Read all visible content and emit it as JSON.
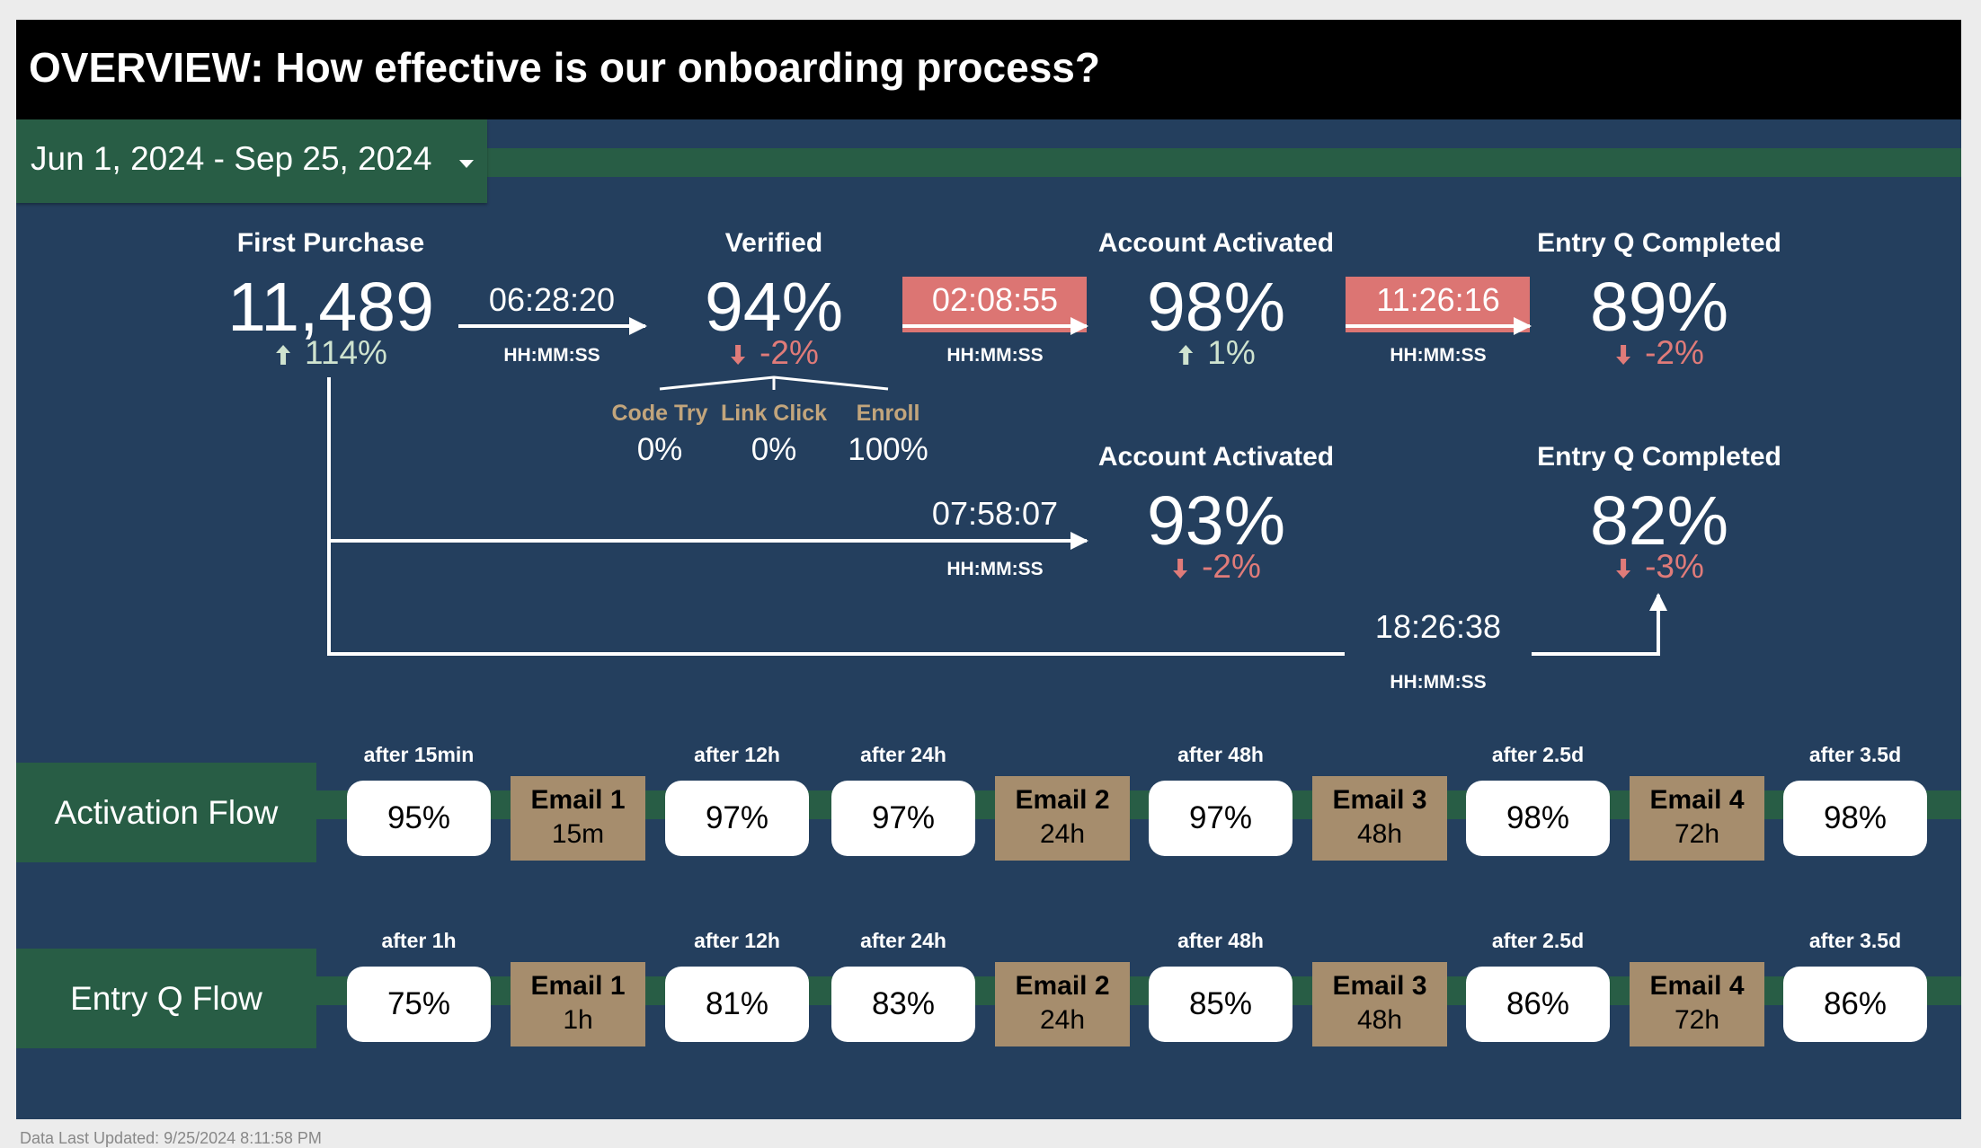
{
  "title": "OVERVIEW:  How effective is our onboarding process?",
  "date_range": "Jun 1, 2024 - Sep 25, 2024",
  "colors": {
    "header": "#000000",
    "panel": "#243f5e",
    "band": "#285d45",
    "highlight": "#dc7573",
    "email": "#a68d6d",
    "up": "#cfe3cf",
    "down": "#e07b79"
  },
  "funnel": {
    "first_purchase": {
      "label": "First Purchase",
      "value": "11,489",
      "delta": "114%",
      "delta_dir": "up"
    },
    "verified": {
      "label": "Verified",
      "value": "94%",
      "delta": "-2%",
      "delta_dir": "down"
    },
    "activated": {
      "label": "Account Activated",
      "value": "98%",
      "delta": "1%",
      "delta_dir": "up"
    },
    "entryq": {
      "label": "Entry Q Completed",
      "value": "89%",
      "delta": "-2%",
      "delta_dir": "down"
    },
    "activated_direct": {
      "label": "Account Activated",
      "value": "93%",
      "delta": "-2%",
      "delta_dir": "down"
    },
    "entryq_direct": {
      "label": "Entry Q Completed",
      "value": "82%",
      "delta": "-3%",
      "delta_dir": "down"
    }
  },
  "transitions": {
    "t1": {
      "time": "06:28:20",
      "unit": "HH:MM:SS"
    },
    "t2": {
      "time": "02:08:55",
      "unit": "HH:MM:SS"
    },
    "t3": {
      "time": "11:26:16",
      "unit": "HH:MM:SS"
    },
    "t4": {
      "time": "07:58:07",
      "unit": "HH:MM:SS"
    },
    "t5": {
      "time": "18:26:38",
      "unit": "HH:MM:SS"
    }
  },
  "verify_methods": [
    {
      "label": "Code Try",
      "value": "0%"
    },
    {
      "label": "Link Click",
      "value": "0%"
    },
    {
      "label": "Enroll",
      "value": "100%"
    }
  ],
  "flows": {
    "activation": {
      "label": "Activation Flow",
      "pills": [
        {
          "after": "after 15min",
          "value": "95%"
        },
        {
          "after": "after 12h",
          "value": "97%"
        },
        {
          "after": "after 24h",
          "value": "97%"
        },
        {
          "after": "after 48h",
          "value": "97%"
        },
        {
          "after": "after 2.5d",
          "value": "98%"
        },
        {
          "after": "after 3.5d",
          "value": "98%"
        }
      ],
      "emails": [
        {
          "name": "Email 1",
          "delay": "15m"
        },
        {
          "name": "Email 2",
          "delay": "24h"
        },
        {
          "name": "Email 3",
          "delay": "48h"
        },
        {
          "name": "Email 4",
          "delay": "72h"
        }
      ]
    },
    "entryq": {
      "label": "Entry Q Flow",
      "pills": [
        {
          "after": "after 1h",
          "value": "75%"
        },
        {
          "after": "after 12h",
          "value": "81%"
        },
        {
          "after": "after 24h",
          "value": "83%"
        },
        {
          "after": "after 48h",
          "value": "85%"
        },
        {
          "after": "after 2.5d",
          "value": "86%"
        },
        {
          "after": "after 3.5d",
          "value": "86%"
        }
      ],
      "emails": [
        {
          "name": "Email 1",
          "delay": "1h"
        },
        {
          "name": "Email 2",
          "delay": "24h"
        },
        {
          "name": "Email 3",
          "delay": "48h"
        },
        {
          "name": "Email 4",
          "delay": "72h"
        }
      ]
    }
  },
  "footer": "Data Last Updated: 9/25/2024 8:11:58 PM"
}
